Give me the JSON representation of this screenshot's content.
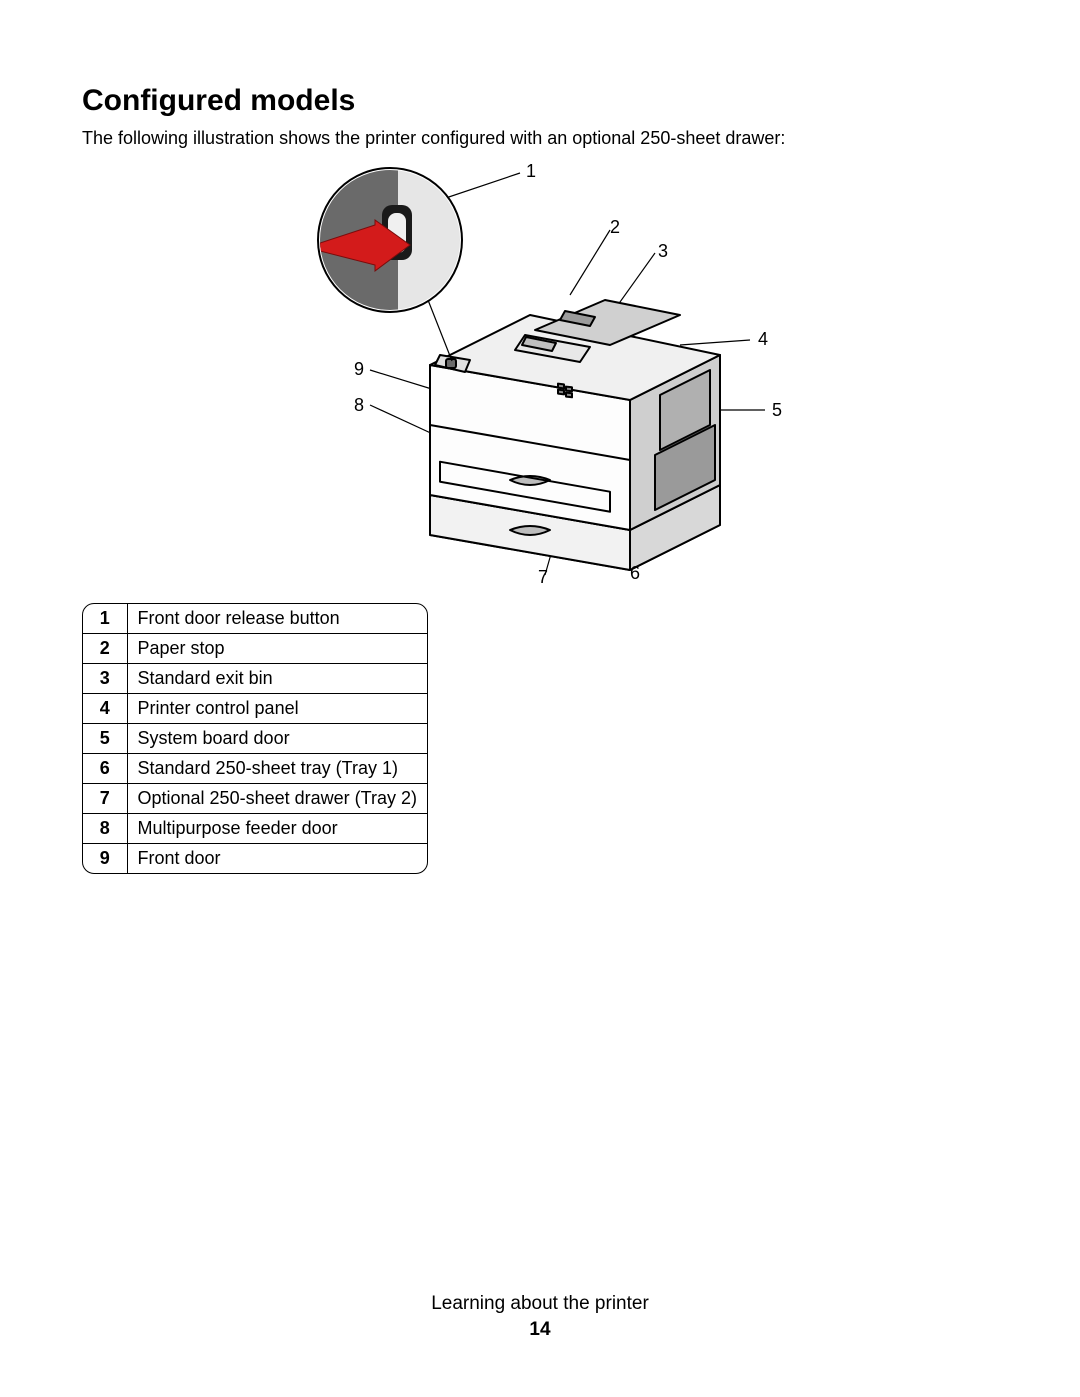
{
  "heading": "Configured models",
  "intro": "The following illustration shows the printer configured with an optional 250-sheet drawer:",
  "callouts": {
    "c1": "1",
    "c2": "2",
    "c3": "3",
    "c4": "4",
    "c5": "5",
    "c6": "6",
    "c7": "7",
    "c8": "8",
    "c9": "9"
  },
  "parts": [
    {
      "n": "1",
      "label": "Front door release button"
    },
    {
      "n": "2",
      "label": "Paper stop"
    },
    {
      "n": "3",
      "label": "Standard exit bin"
    },
    {
      "n": "4",
      "label": "Printer control panel"
    },
    {
      "n": "5",
      "label": "System board door"
    },
    {
      "n": "6",
      "label": "Standard 250-sheet tray (Tray 1)"
    },
    {
      "n": "7",
      "label": "Optional 250-sheet drawer (Tray 2)"
    },
    {
      "n": "8",
      "label": "Multipurpose feeder door"
    },
    {
      "n": "9",
      "label": "Front door"
    }
  ],
  "footer_title": "Learning about the printer",
  "footer_page": "14",
  "diagram_style": {
    "stroke": "#000000",
    "fill_light": "#ffffff",
    "fill_gray": "#c8c8c8",
    "fill_darkgray": "#6a6a6a",
    "fill_mid": "#a0a0a0",
    "arrow_red": "#d31b1b",
    "stroke_width": 2
  }
}
